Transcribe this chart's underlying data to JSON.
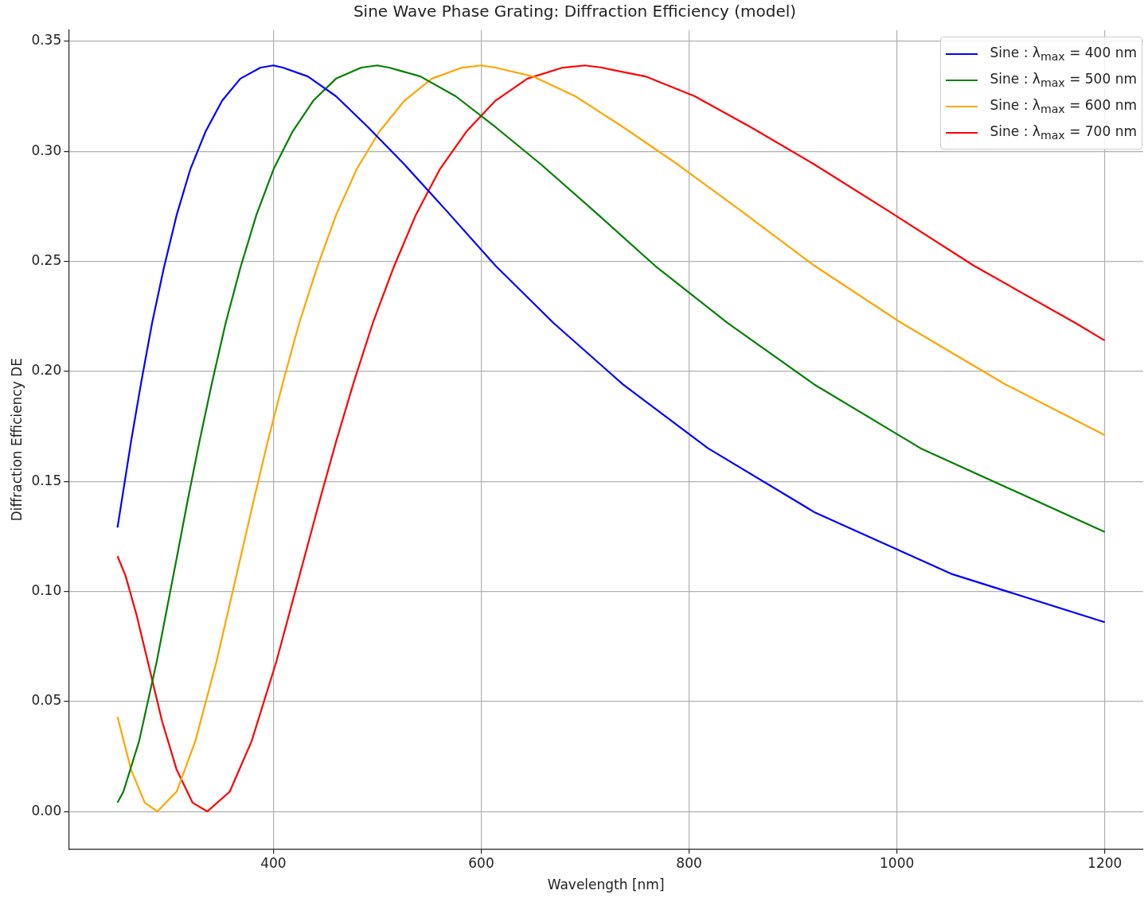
{
  "chart_data": {
    "type": "line",
    "title": "Sine Wave Phase Grating: Diffraction Efficiency (model)",
    "xlabel": "Wavelength [nm]",
    "ylabel": "Diffraction Efficiency DE",
    "xlim": [
      203,
      1237
    ],
    "ylim": [
      -0.017,
      0.355
    ],
    "xticks": [
      400,
      600,
      800,
      1000,
      1200
    ],
    "yticks": [
      {
        "value": 0,
        "label": "0.00"
      },
      0.05,
      {
        "value": 0.1,
        "label": "0.10"
      },
      0.15,
      {
        "value": 0.2,
        "label": "0.20"
      },
      0.25,
      {
        "value": 0.3,
        "label": "0.30"
      },
      0.35
    ],
    "grid": true,
    "legend": "top right",
    "marker": "none",
    "line_style": "solid",
    "series": [
      {
        "name": "Sine : λ$_{max}$ = 400 nm",
        "color": "#0000ff",
        "x": [
          250,
          254.0,
          263.0,
          272.8,
          283.3,
          294.6,
          306.9,
          320.2,
          334.8,
          350.7,
          368.2,
          387.6,
          400,
          409.2,
          433.2,
          460.3,
          491.0,
          526.1,
          566.5,
          613.7,
          669.5,
          736.5,
          818.3,
          920.6,
          1052.1,
          1200
        ],
        "values": [
          0.129,
          0.141,
          0.168,
          0.195,
          0.222,
          0.247,
          0.271,
          0.292,
          0.309,
          0.323,
          0.333,
          0.338,
          0.339,
          0.338,
          0.334,
          0.325,
          0.311,
          0.294,
          0.273,
          0.248,
          0.222,
          0.194,
          0.165,
          0.136,
          0.108,
          0.086
        ]
      },
      {
        "name": "Sine : λ$_{max}$ = 500 nm",
        "color": "#008000",
        "x": [
          250,
          255.7,
          270.8,
          287.7,
          306.9,
          317.4,
          328.8,
          341.0,
          354.1,
          368.2,
          383.6,
          400.3,
          418.5,
          438.4,
          460.3,
          484.5,
          500,
          511.4,
          541.5,
          575.4,
          613.7,
          657.6,
          708.2,
          767.2,
          836.9,
          920.6,
          1022.9,
          1200
        ],
        "values": [
          0.004,
          0.009,
          0.032,
          0.068,
          0.115,
          0.141,
          0.168,
          0.195,
          0.222,
          0.247,
          0.271,
          0.292,
          0.309,
          0.323,
          0.333,
          0.338,
          0.339,
          0.338,
          0.334,
          0.325,
          0.311,
          0.294,
          0.273,
          0.248,
          0.222,
          0.194,
          0.165,
          0.127
        ]
      },
      {
        "name": "Sine : λ$_{max}$ = 600 nm",
        "color": "#ffa500",
        "x": [
          250,
          251.1,
          263.0,
          276.2,
          288.3,
          306.9,
          324.9,
          345.2,
          368.2,
          380.9,
          394.5,
          409.2,
          424.9,
          441.9,
          460.3,
          480.3,
          502.1,
          526.1,
          552.4,
          581.4,
          600,
          613.7,
          649.8,
          690.5,
          736.5,
          789.1,
          849.8,
          920.6,
          1004.3,
          1104.7,
          1200
        ],
        "values": [
          0.043,
          0.041,
          0.019,
          0.004,
          0,
          0.009,
          0.032,
          0.068,
          0.115,
          0.141,
          0.168,
          0.195,
          0.222,
          0.247,
          0.271,
          0.292,
          0.309,
          0.323,
          0.333,
          0.338,
          0.339,
          0.338,
          0.334,
          0.325,
          0.311,
          0.294,
          0.273,
          0.248,
          0.222,
          0.194,
          0.171
        ]
      },
      {
        "name": "Sine : λ$_{max}$ = 700 nm",
        "color": "#ff0000",
        "x": [
          250,
          257.8,
          268.5,
          280.2,
          292.9,
          306.9,
          322.2,
          336.4,
          358.0,
          379.1,
          402.8,
          429.6,
          444.4,
          460.3,
          477.3,
          495.7,
          515.5,
          537.0,
          560.4,
          585.8,
          613.7,
          644.4,
          678.3,
          700,
          716.0,
          758.1,
          805.5,
          859.2,
          920.6,
          991.4,
          1074.0,
          1171.7,
          1200
        ],
        "values": [
          0.116,
          0.107,
          0.089,
          0.066,
          0.041,
          0.019,
          0.004,
          0,
          0.009,
          0.032,
          0.068,
          0.115,
          0.141,
          0.168,
          0.195,
          0.222,
          0.247,
          0.271,
          0.292,
          0.309,
          0.323,
          0.333,
          0.338,
          0.339,
          0.338,
          0.334,
          0.325,
          0.311,
          0.294,
          0.273,
          0.248,
          0.222,
          0.214
        ]
      }
    ]
  }
}
